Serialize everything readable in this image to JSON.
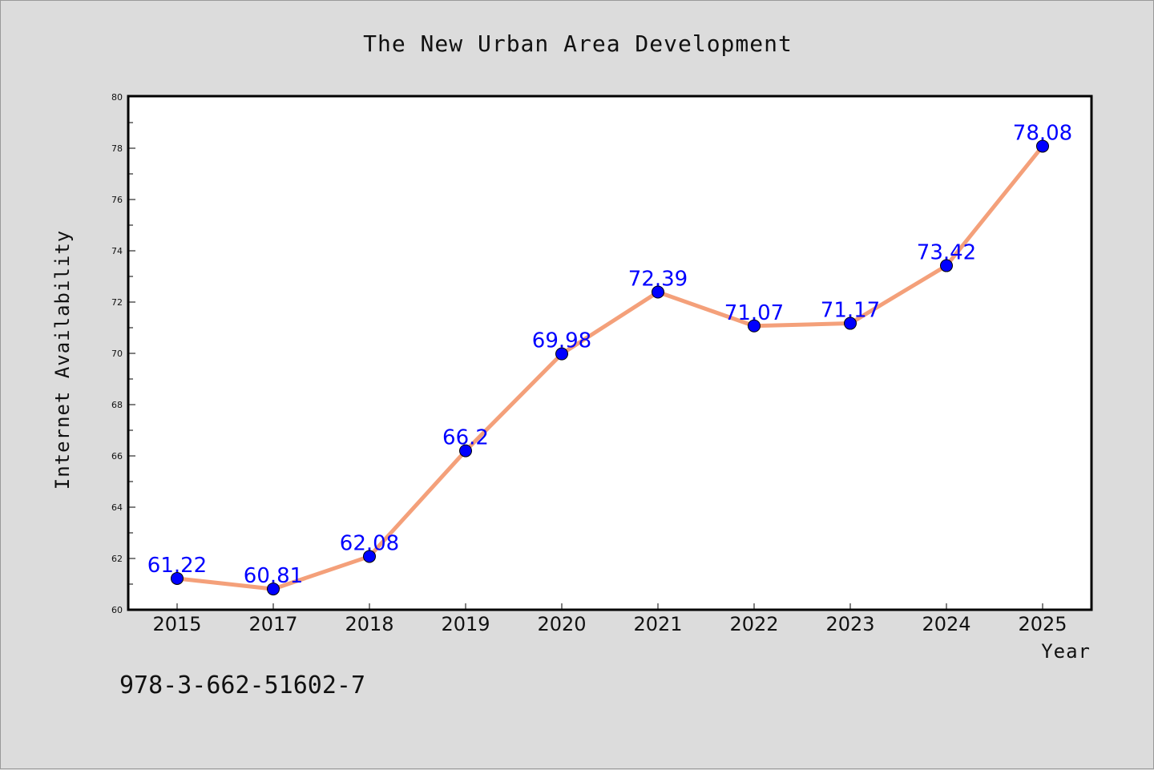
{
  "chart_data": {
    "type": "line",
    "title": "The New Urban Area Development",
    "xlabel": "Year",
    "ylabel": "Internet Availability",
    "categories": [
      "2015",
      "2017",
      "2018",
      "2019",
      "2020",
      "2021",
      "2022",
      "2023",
      "2024",
      "2025"
    ],
    "series": [
      {
        "values": [
          61.22,
          60.81,
          62.08,
          66.2,
          69.98,
          72.39,
          71.07,
          71.17,
          73.42,
          78.08
        ],
        "line_color": "#f4a07a",
        "marker_color": "#0000ff"
      }
    ],
    "data_labels": [
      "61.22",
      "60.81",
      "62.08",
      "66.2",
      "69.98",
      "72.39",
      "71.07",
      "71.17",
      "73.42",
      "78.08"
    ],
    "ylim": [
      60,
      80
    ],
    "yticks": [
      60,
      62,
      64,
      66,
      68,
      70,
      72,
      74,
      76,
      78,
      80
    ],
    "grid": false,
    "legend": "none"
  },
  "footer": {
    "isbn": "978-3-662-51602-7"
  },
  "colors": {
    "background": "#dcdcdc",
    "plot_area": "#ffffff",
    "line": "#f4a07a",
    "marker": "#0000ff",
    "data_label": "#0000ff"
  }
}
